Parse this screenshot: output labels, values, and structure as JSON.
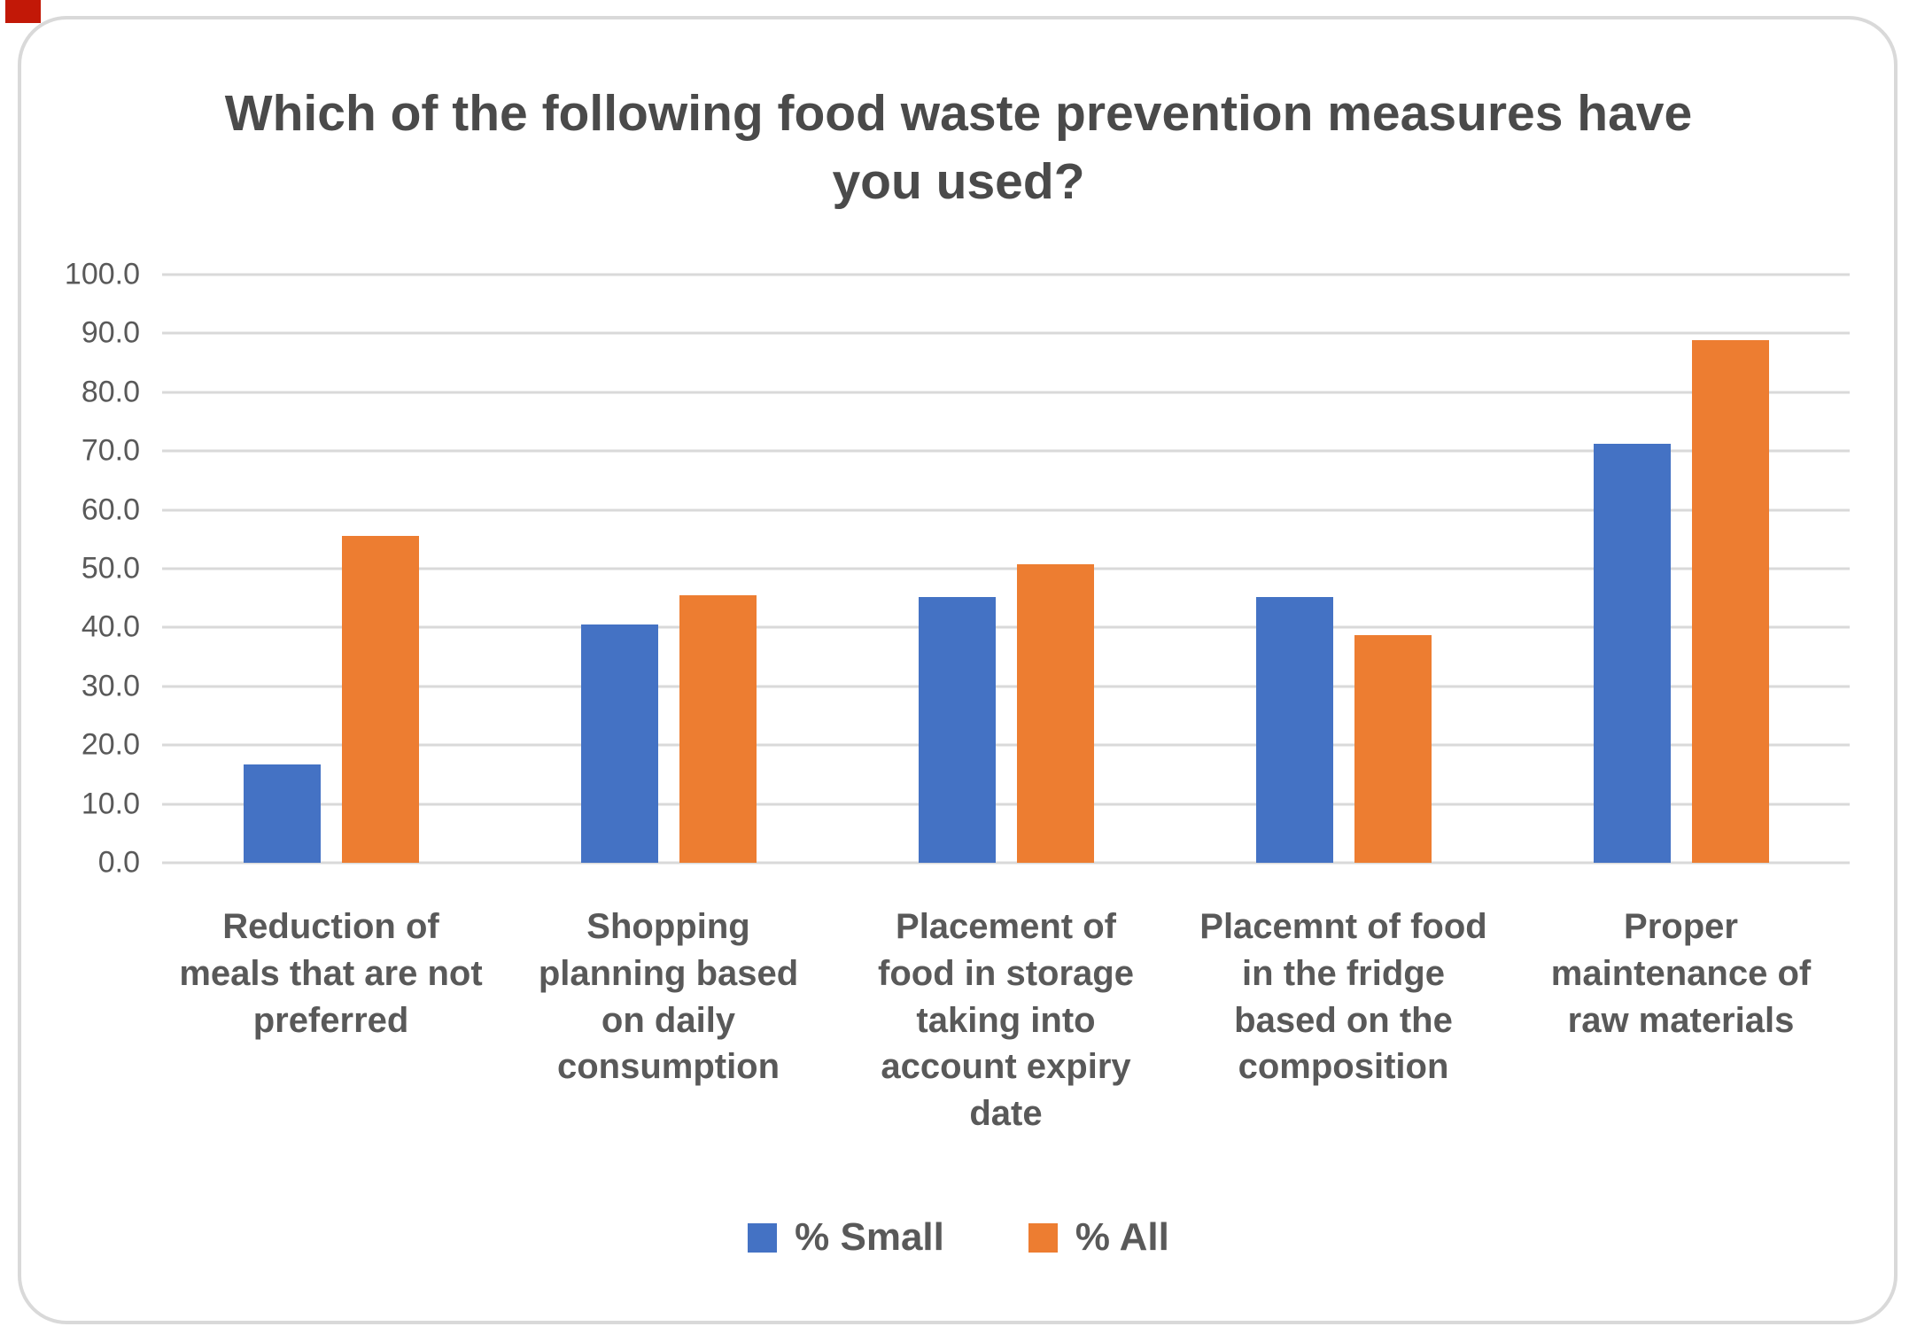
{
  "page": {
    "background_color": "#ffffff",
    "card_border_color": "#d9d9d9",
    "corner_marker_color": "#c21807"
  },
  "chart_data": {
    "type": "bar",
    "title": "Which of the following food waste prevention measures have you used?",
    "categories": [
      "Reduction of meals that are not preferred",
      "Shopping planning based on daily consumption",
      "Placement of food in storage taking into account expiry date",
      "Placemnt of food in the fridge based on the composition",
      "Proper maintenance of raw materials"
    ],
    "series": [
      {
        "name": "% Small",
        "color": "#4472C4",
        "values": [
          16.7,
          40.5,
          45.2,
          45.2,
          71.2
        ]
      },
      {
        "name": "% All",
        "color": "#ED7D31",
        "values": [
          55.6,
          45.5,
          50.7,
          38.7,
          88.9
        ]
      }
    ],
    "ylim": [
      0,
      100
    ],
    "ytick_step": 10,
    "ytick_labels": [
      "100.0",
      "90.0",
      "80.0",
      "70.0",
      "60.0",
      "50.0",
      "40.0",
      "30.0",
      "20.0",
      "10.0",
      "0.0"
    ],
    "grid": true,
    "gridline_color": "#d9d9d9",
    "legend_position": "bottom",
    "text_color": "#595959",
    "title_color": "#4a4a4a"
  }
}
